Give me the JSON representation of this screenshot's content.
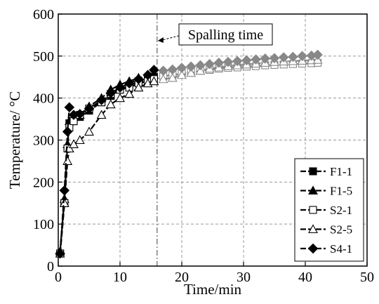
{
  "chart_data": {
    "type": "line",
    "xlabel": "Time/min",
    "ylabel": "Temperature/ °C",
    "xlim": [
      0,
      50
    ],
    "ylim": [
      0,
      600
    ],
    "xticks": [
      0,
      10,
      20,
      30,
      40,
      50
    ],
    "yticks": [
      0,
      100,
      200,
      300,
      400,
      500,
      600
    ],
    "grid": true,
    "legend_position": "bottom-right",
    "annotation": {
      "text": "Spalling time",
      "x": 16
    },
    "colors": {
      "before": "#000000",
      "after": "#888888"
    },
    "series": [
      {
        "name": "F1-1",
        "marker": "square-filled",
        "before": [
          [
            0.3,
            30
          ],
          [
            1,
            150
          ],
          [
            1.5,
            280
          ],
          [
            1.8,
            340
          ],
          [
            2.5,
            345
          ],
          [
            3.5,
            355
          ],
          [
            5,
            370
          ],
          [
            7,
            390
          ],
          [
            8.5,
            405
          ],
          [
            10,
            420
          ],
          [
            11.5,
            430
          ],
          [
            13,
            440
          ],
          [
            14.5,
            445
          ],
          [
            15.5,
            450
          ]
        ],
        "after": []
      },
      {
        "name": "F1-5",
        "marker": "triangle-filled",
        "before": [
          [
            0.3,
            35
          ],
          [
            1,
            160
          ],
          [
            1.5,
            290
          ],
          [
            1.8,
            345
          ],
          [
            2.5,
            355
          ],
          [
            3.5,
            360
          ],
          [
            5,
            380
          ],
          [
            7,
            400
          ],
          [
            8.5,
            420
          ],
          [
            10,
            432
          ],
          [
            11.5,
            440
          ],
          [
            13,
            448
          ],
          [
            14.5,
            452
          ],
          [
            15.5,
            455
          ]
        ],
        "after": []
      },
      {
        "name": "S2-1",
        "marker": "square-open",
        "before": [
          [
            0.3,
            30
          ],
          [
            1,
            150
          ],
          [
            1.5,
            280
          ],
          [
            1.8,
            330
          ],
          [
            2.5,
            345
          ],
          [
            3.5,
            360
          ],
          [
            5,
            375
          ],
          [
            7,
            390
          ],
          [
            8.5,
            410
          ],
          [
            10,
            420
          ],
          [
            11.5,
            425
          ],
          [
            13,
            435
          ],
          [
            14.5,
            440
          ],
          [
            15.5,
            445
          ]
        ],
        "after": [
          [
            17,
            452
          ],
          [
            18.5,
            455
          ],
          [
            20,
            458
          ],
          [
            21.5,
            462
          ],
          [
            23,
            465
          ],
          [
            24.5,
            467
          ],
          [
            26,
            470
          ],
          [
            27.5,
            472
          ],
          [
            29,
            473
          ],
          [
            30.5,
            475
          ],
          [
            32,
            476
          ],
          [
            33.5,
            478
          ],
          [
            35,
            479
          ],
          [
            36.5,
            480
          ],
          [
            38,
            481
          ],
          [
            39.5,
            482
          ],
          [
            41,
            483
          ],
          [
            42,
            484
          ]
        ]
      },
      {
        "name": "S2-5",
        "marker": "triangle-open",
        "before": [
          [
            0.3,
            30
          ],
          [
            1,
            150
          ],
          [
            1.5,
            250
          ],
          [
            1.8,
            280
          ],
          [
            2.5,
            290
          ],
          [
            3.5,
            300
          ],
          [
            5,
            320
          ],
          [
            7,
            360
          ],
          [
            8.5,
            385
          ],
          [
            10,
            400
          ],
          [
            11.5,
            410
          ],
          [
            13,
            425
          ],
          [
            14.5,
            435
          ],
          [
            15.5,
            440
          ]
        ],
        "after": [
          [
            17,
            445
          ],
          [
            18.5,
            448
          ],
          [
            20,
            455
          ],
          [
            21.5,
            460
          ],
          [
            23,
            465
          ],
          [
            24.5,
            470
          ],
          [
            26,
            473
          ],
          [
            27.5,
            476
          ],
          [
            29,
            478
          ],
          [
            30.5,
            480
          ],
          [
            32,
            482
          ],
          [
            33.5,
            484
          ],
          [
            35,
            486
          ],
          [
            36.5,
            487
          ],
          [
            38,
            488
          ],
          [
            39.5,
            489
          ],
          [
            41,
            490
          ],
          [
            42,
            491
          ]
        ]
      },
      {
        "name": "S4-1",
        "marker": "diamond-filled",
        "before": [
          [
            0.3,
            30
          ],
          [
            1,
            180
          ],
          [
            1.5,
            320
          ],
          [
            1.8,
            378
          ],
          [
            2.5,
            360
          ],
          [
            3.5,
            362
          ],
          [
            5,
            375
          ],
          [
            7,
            395
          ],
          [
            8.5,
            412
          ],
          [
            10,
            425
          ],
          [
            11.5,
            435
          ],
          [
            13,
            445
          ],
          [
            14.5,
            455
          ],
          [
            15.5,
            467
          ]
        ],
        "after": [
          [
            17,
            465
          ],
          [
            18.5,
            468
          ],
          [
            20,
            472
          ],
          [
            21.5,
            475
          ],
          [
            23,
            478
          ],
          [
            24.5,
            481
          ],
          [
            26,
            484
          ],
          [
            27.5,
            486
          ],
          [
            29,
            488
          ],
          [
            30.5,
            490
          ],
          [
            32,
            492
          ],
          [
            33.5,
            494
          ],
          [
            35,
            495
          ],
          [
            36.5,
            497
          ],
          [
            38,
            498
          ],
          [
            39.5,
            500
          ],
          [
            41,
            501
          ],
          [
            42,
            503
          ]
        ]
      }
    ]
  }
}
